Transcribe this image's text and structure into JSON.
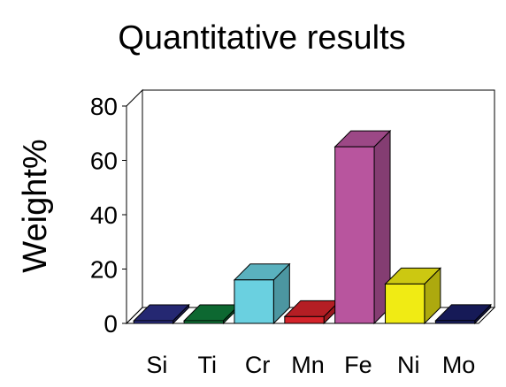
{
  "chart_data": {
    "type": "bar",
    "title": "Quantitative results",
    "xlabel": "",
    "ylabel": "Weight%",
    "ylim": [
      0,
      80
    ],
    "yticks": [
      0,
      20,
      40,
      60,
      80
    ],
    "grid": false,
    "style": "3d",
    "categories": [
      "Si",
      "Ti",
      "Cr",
      "Mn",
      "Fe",
      "Ni",
      "Mo"
    ],
    "values": [
      0.5,
      0.3,
      16,
      2.5,
      65,
      14.5,
      1
    ],
    "colors": [
      "#2b2f86",
      "#0f7a3a",
      "#6ad0e0",
      "#d4232a",
      "#b8559e",
      "#f0eb14",
      "#1a1f66"
    ]
  }
}
